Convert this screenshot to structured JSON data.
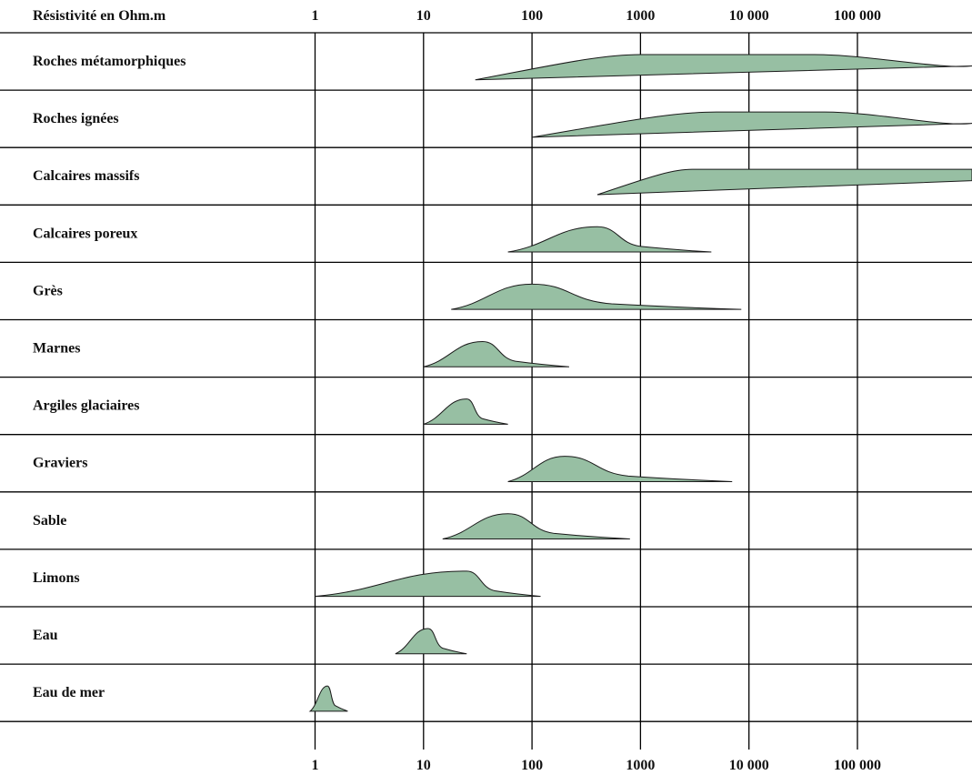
{
  "chart_data": {
    "type": "area",
    "title": "",
    "header_label": "Résistivité en Ohm.m",
    "x_scale": "log10",
    "xlim": [
      0.9,
      1300000
    ],
    "x_ticks": [
      1,
      10,
      100,
      1000,
      10000,
      100000
    ],
    "x_tick_labels": [
      "1",
      "10",
      "100",
      "1000",
      "10 000",
      "100 000"
    ],
    "grid": true,
    "series": [
      {
        "name": "Roches métamorphiques",
        "range": [
          30,
          3000000
        ],
        "peak": 5000,
        "plateau": [
          1000,
          40000
        ]
      },
      {
        "name": "Roches ignées",
        "range": [
          100,
          1300000
        ],
        "peak": 15000,
        "plateau": [
          5000,
          50000
        ]
      },
      {
        "name": "Calcaires massifs",
        "range": [
          400,
          1300000
        ],
        "peak": 3000,
        "plateau": [
          3000,
          1300000
        ]
      },
      {
        "name": "Calcaires poreux",
        "range": [
          60,
          4500
        ],
        "peak": 400
      },
      {
        "name": "Grès",
        "range": [
          18,
          8500
        ],
        "peak": 100
      },
      {
        "name": "Marnes",
        "range": [
          10,
          220
        ],
        "peak": 35
      },
      {
        "name": "Argiles glaciaires",
        "range": [
          10,
          60
        ],
        "peak": 25
      },
      {
        "name": "Graviers",
        "range": [
          60,
          7000
        ],
        "peak": 200
      },
      {
        "name": "Sable",
        "range": [
          15,
          800
        ],
        "peak": 60
      },
      {
        "name": "Limons",
        "range": [
          1,
          120
        ],
        "peak": 25
      },
      {
        "name": "Eau",
        "range": [
          5.5,
          25
        ],
        "peak": 11
      },
      {
        "name": "Eau de mer",
        "range": [
          0.9,
          2
        ],
        "peak": 1.3
      }
    ]
  }
}
